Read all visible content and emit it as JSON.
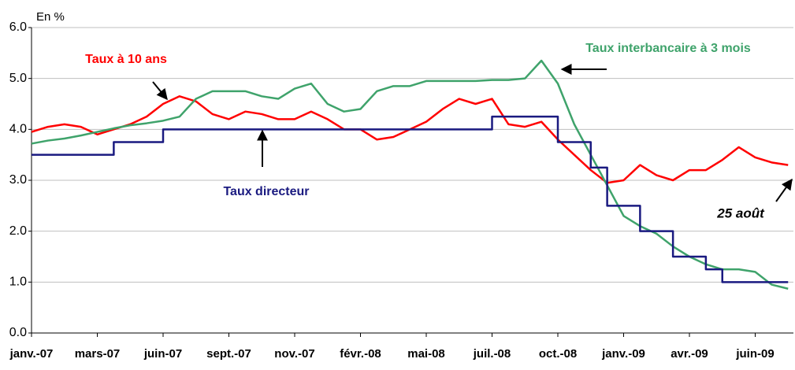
{
  "chart_data": {
    "type": "line",
    "y_label": "En %",
    "categories": [
      "janv.-07",
      null,
      null,
      null,
      "mars-07",
      null,
      null,
      null,
      "juin-07",
      null,
      null,
      null,
      "sept.-07",
      null,
      null,
      null,
      "nov.-07",
      null,
      null,
      null,
      "févr.-08",
      null,
      null,
      null,
      "mai-08",
      null,
      null,
      null,
      "juil.-08",
      null,
      null,
      null,
      "oct.-08",
      null,
      null,
      null,
      "janv.-09",
      null,
      null,
      null,
      "avr.-09",
      null,
      null,
      null,
      "juin-09",
      null,
      null
    ],
    "series": [
      {
        "name": "Taux à 10 ans",
        "color": "#ff0000",
        "values": [
          3.95,
          4.05,
          4.1,
          4.05,
          3.9,
          4.0,
          4.1,
          4.25,
          4.5,
          4.65,
          4.55,
          4.3,
          4.2,
          4.35,
          4.3,
          4.2,
          4.2,
          4.35,
          4.2,
          4.0,
          4.0,
          3.8,
          3.85,
          4.0,
          4.15,
          4.4,
          4.6,
          4.5,
          4.6,
          4.1,
          4.05,
          4.15,
          3.8,
          3.5,
          3.2,
          2.95,
          3.0,
          3.3,
          3.1,
          3.0,
          3.2,
          3.2,
          3.4,
          3.65,
          3.45,
          3.35,
          3.3
        ]
      },
      {
        "name": "Taux interbancaire à 3 mois",
        "color": "#3fa36b",
        "values": [
          3.72,
          3.78,
          3.82,
          3.88,
          3.95,
          4.02,
          4.08,
          4.12,
          4.17,
          4.25,
          4.6,
          4.75,
          4.75,
          4.75,
          4.65,
          4.6,
          4.8,
          4.9,
          4.5,
          4.35,
          4.4,
          4.75,
          4.85,
          4.85,
          4.95,
          4.95,
          4.95,
          4.95,
          4.97,
          4.97,
          5.0,
          5.35,
          4.9,
          4.1,
          3.5,
          2.9,
          2.3,
          2.1,
          1.95,
          1.7,
          1.5,
          1.35,
          1.25,
          1.25,
          1.2,
          0.95,
          0.87
        ]
      },
      {
        "name": "Taux directeur",
        "color": "#1a1a80",
        "step": true,
        "values": [
          3.5,
          3.5,
          3.5,
          3.5,
          3.5,
          3.75,
          3.75,
          3.75,
          4.0,
          4.0,
          4.0,
          4.0,
          4.0,
          4.0,
          4.0,
          4.0,
          4.0,
          4.0,
          4.0,
          4.0,
          4.0,
          4.0,
          4.0,
          4.0,
          4.0,
          4.0,
          4.0,
          4.0,
          4.25,
          4.25,
          4.25,
          4.25,
          3.75,
          3.75,
          3.25,
          2.5,
          2.5,
          2.0,
          2.0,
          1.5,
          1.5,
          1.25,
          1.0,
          1.0,
          1.0,
          1.0,
          1.0
        ]
      }
    ],
    "annotation": "25 août",
    "ylim": [
      0,
      6
    ],
    "yticks": [
      {
        "value": 0,
        "label": "0.0"
      },
      {
        "value": 1,
        "label": "1.0"
      },
      {
        "value": 2,
        "label": "2.0"
      },
      {
        "value": 3,
        "label": "3.0"
      },
      {
        "value": 4,
        "label": "4.0"
      },
      {
        "value": 5,
        "label": "5.0"
      },
      {
        "value": 6,
        "label": "6.0"
      }
    ],
    "grid": true
  }
}
